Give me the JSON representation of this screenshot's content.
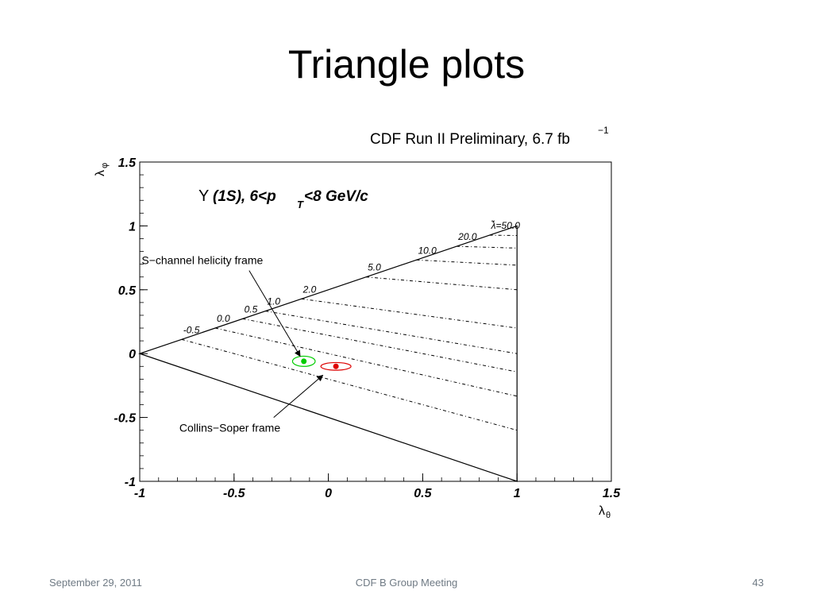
{
  "slide": {
    "title": "Triangle plots",
    "footer_left": "September 29, 2011",
    "footer_center": "CDF B Group Meeting",
    "footer_right": "43"
  },
  "chart_data": {
    "type": "scatter",
    "header": "CDF Run II Preliminary, 6.7 fb",
    "header_sup": "−1",
    "subtitle_prefix": "Υ",
    "subtitle_main": "(1S), 6<p",
    "subtitle_sub": "T",
    "subtitle_rest": "<8 GeV/c",
    "xlabel": "λ",
    "xlabel_sub": "θ",
    "ylabel": "λ",
    "ylabel_sub": "φ",
    "xlim": [
      -1,
      1.5
    ],
    "ylim": [
      -1,
      1.5
    ],
    "x_ticks": [
      -1,
      -0.5,
      0,
      0.5,
      1,
      1.5
    ],
    "x_tick_labels": [
      "-1",
      "-0.5",
      "0",
      "0.5",
      "1",
      "1.5"
    ],
    "y_ticks": [
      -1,
      -0.5,
      0,
      0.5,
      1,
      1.5
    ],
    "y_tick_labels": [
      "-1",
      "-0.5",
      "0",
      "0.5",
      "1",
      "1.5"
    ],
    "triangle": [
      [
        -1,
        0
      ],
      [
        1,
        1
      ],
      [
        1,
        -1
      ]
    ],
    "lambda_tilde_lines": [
      {
        "label": "-0.5",
        "value": -0.5
      },
      {
        "label": "0.0",
        "value": 0.0
      },
      {
        "label": "0.5",
        "value": 0.5
      },
      {
        "label": "1.0",
        "value": 1.0
      },
      {
        "label": "2.0",
        "value": 2.0
      },
      {
        "label": "5.0",
        "value": 5.0
      },
      {
        "label": "10.0",
        "value": 10.0
      },
      {
        "label": "20.0",
        "value": 20.0
      },
      {
        "label": "λ̃=50.0",
        "value": 50.0
      }
    ],
    "points": [
      {
        "name": "S-channel helicity frame",
        "x": -0.13,
        "y": -0.06,
        "sx": 0.06,
        "sy": 0.04,
        "color": "#00cc00"
      },
      {
        "name": "Collins-Soper frame",
        "x": 0.04,
        "y": -0.1,
        "sx": 0.08,
        "sy": 0.03,
        "color": "#dd0000"
      }
    ],
    "annotations": [
      {
        "text": "S−channel helicity frame",
        "x": -0.99,
        "y": 0.7,
        "target": [
          -0.15,
          -0.02
        ],
        "from": [
          -0.42,
          0.65
        ]
      },
      {
        "text": "Collins−Soper frame",
        "x": -0.79,
        "y": -0.61,
        "target": [
          -0.03,
          -0.17
        ],
        "from": [
          -0.29,
          -0.5
        ]
      }
    ]
  }
}
